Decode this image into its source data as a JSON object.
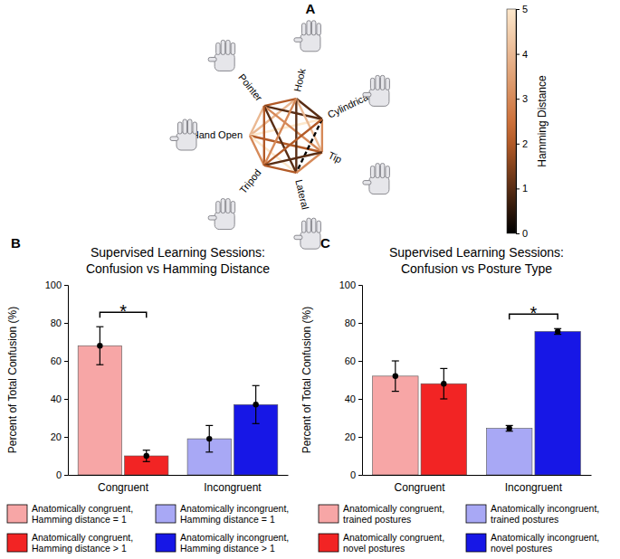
{
  "chart_data": [
    {
      "type": "network",
      "panel_label": "A",
      "nodes": [
        {
          "label": "Hand Open"
        },
        {
          "label": "Pointer"
        },
        {
          "label": "Hook"
        },
        {
          "label": "Cylindrical"
        },
        {
          "label": "Tip"
        },
        {
          "label": "Lateral"
        },
        {
          "label": "Tripod"
        }
      ],
      "edges": [
        {
          "source": "Hand Open",
          "target": "Pointer",
          "distance": 4
        },
        {
          "source": "Hand Open",
          "target": "Hook",
          "distance": 4
        },
        {
          "source": "Hand Open",
          "target": "Cylindrical",
          "distance": 5
        },
        {
          "source": "Hand Open",
          "target": "Tip",
          "distance": 2
        },
        {
          "source": "Hand Open",
          "target": "Lateral",
          "distance": 5
        },
        {
          "source": "Hand Open",
          "target": "Tripod",
          "distance": 3
        },
        {
          "source": "Pointer",
          "target": "Hook",
          "distance": 2
        },
        {
          "source": "Pointer",
          "target": "Cylindrical",
          "distance": 1
        },
        {
          "source": "Pointer",
          "target": "Tip",
          "distance": 3
        },
        {
          "source": "Pointer",
          "target": "Lateral",
          "distance": 1
        },
        {
          "source": "Pointer",
          "target": "Tripod",
          "distance": 2
        },
        {
          "source": "Hook",
          "target": "Cylindrical",
          "distance": 1
        },
        {
          "source": "Hook",
          "target": "Tip",
          "distance": 4
        },
        {
          "source": "Hook",
          "target": "Lateral",
          "distance": 1
        },
        {
          "source": "Hook",
          "target": "Tripod",
          "distance": 3
        },
        {
          "source": "Cylindrical",
          "target": "Tip",
          "distance": 3
        },
        {
          "source": "Cylindrical",
          "target": "Lateral",
          "distance": 0
        },
        {
          "source": "Cylindrical",
          "target": "Tripod",
          "distance": 2
        },
        {
          "source": "Tip",
          "target": "Lateral",
          "distance": 3
        },
        {
          "source": "Tip",
          "target": "Tripod",
          "distance": 1
        },
        {
          "source": "Lateral",
          "target": "Tripod",
          "distance": 2
        }
      ],
      "colorbar": {
        "title": "Hamming Distance",
        "range": [
          0,
          5
        ],
        "ticks": [
          0,
          1,
          2,
          3,
          4,
          5
        ]
      }
    },
    {
      "type": "bar",
      "panel_label": "B",
      "title": "Supervised Learning Sessions:\nConfusion vs Hamming Distance",
      "ylabel": "Percent of Total Confusion (%)",
      "categories": [
        "Congruent",
        "Incongruent"
      ],
      "ylim": [
        0,
        100
      ],
      "yticks": [
        0,
        20,
        40,
        60,
        80,
        100
      ],
      "legend": "bottom",
      "series": [
        {
          "name": "Anatomically congruent, Hamming distance = 1",
          "color": "#f7a6a6",
          "values": [
            68,
            null
          ],
          "error": [
            10,
            null
          ]
        },
        {
          "name": "Anatomically congruent, Hamming distance > 1",
          "color": "#f22424",
          "values": [
            10,
            null
          ],
          "error": [
            3,
            null
          ]
        },
        {
          "name": "Anatomically incongruent, Hamming distance = 1",
          "color": "#a8a8f5",
          "values": [
            null,
            19
          ],
          "error": [
            null,
            7
          ]
        },
        {
          "name": "Anatomically incongruent, Hamming distance > 1",
          "color": "#1717e6",
          "values": [
            null,
            37
          ],
          "error": [
            null,
            10
          ]
        }
      ],
      "significance": [
        {
          "label": "*",
          "category": "Congruent"
        }
      ]
    },
    {
      "type": "bar",
      "panel_label": "C",
      "title": "Supervised Learning Sessions:\nConfusion vs Posture Type",
      "ylabel": "Percent of Total Confusion (%)",
      "categories": [
        "Congruent",
        "Incongruent"
      ],
      "ylim": [
        0,
        100
      ],
      "yticks": [
        0,
        20,
        40,
        60,
        80,
        100
      ],
      "legend": "bottom",
      "series": [
        {
          "name": "Anatomically congruent, trained postures",
          "color": "#f7a6a6",
          "values": [
            52,
            null
          ],
          "error": [
            8,
            null
          ]
        },
        {
          "name": "Anatomically congruent, novel postures",
          "color": "#f22424",
          "values": [
            48,
            null
          ],
          "error": [
            8,
            null
          ]
        },
        {
          "name": "Anatomically incongruent, trained postures",
          "color": "#a8a8f5",
          "values": [
            null,
            24.5
          ],
          "error": [
            null,
            1.5
          ]
        },
        {
          "name": "Anatomically incongruent, novel postures",
          "color": "#1717e6",
          "values": [
            null,
            75.5
          ],
          "error": [
            null,
            1.5
          ]
        }
      ],
      "significance": [
        {
          "label": "*",
          "category": "Incongruent"
        }
      ]
    }
  ]
}
